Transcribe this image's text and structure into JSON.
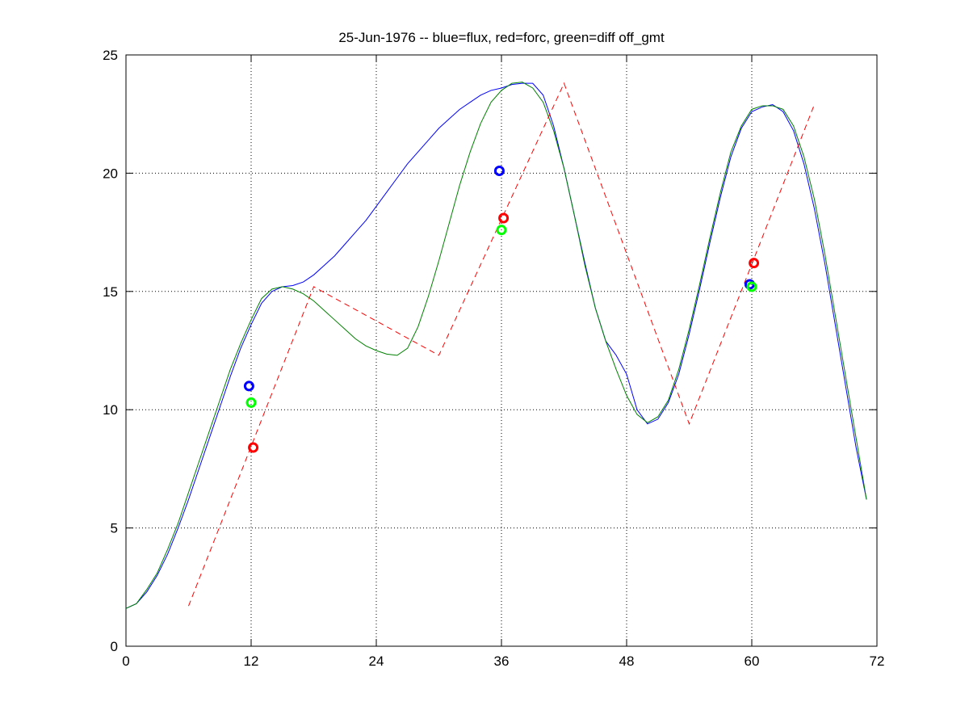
{
  "chart_data": {
    "type": "line",
    "title": "25-Jun-1976 -- blue=flux, red=forc, green=diff off_gmt",
    "xlim": [
      0,
      72
    ],
    "xticks": [
      0,
      12,
      24,
      36,
      48,
      60,
      72
    ],
    "ylim": [
      0,
      25
    ],
    "yticks": [
      0,
      5,
      10,
      15,
      20,
      25
    ],
    "grid": true,
    "series": [
      {
        "type": "line",
        "color": "#0000ff",
        "style": "solid",
        "x": [
          0,
          1,
          2,
          3,
          4,
          5,
          6,
          7,
          8,
          9,
          10,
          11,
          12,
          13,
          14,
          15,
          16,
          17,
          18,
          19,
          20,
          21,
          22,
          23,
          24,
          25,
          26,
          27,
          28,
          29,
          30,
          31,
          32,
          33,
          34,
          35,
          36,
          37,
          38,
          39,
          40,
          41,
          42,
          43,
          44,
          45,
          46,
          47,
          48,
          49,
          50,
          51,
          52,
          53,
          54,
          55,
          56,
          57,
          58,
          59,
          60,
          61,
          62,
          63,
          64,
          65,
          66,
          67,
          68,
          69,
          70,
          71
        ],
        "values": [
          1.6,
          1.8,
          2.3,
          3.0,
          3.9,
          5.0,
          6.2,
          7.5,
          8.8,
          10.1,
          11.4,
          12.6,
          13.6,
          14.5,
          15.0,
          15.2,
          15.25,
          15.4,
          15.7,
          16.1,
          16.5,
          17.0,
          17.5,
          18.0,
          18.6,
          19.2,
          19.8,
          20.4,
          20.9,
          21.4,
          21.9,
          22.3,
          22.7,
          23.0,
          23.3,
          23.5,
          23.6,
          23.75,
          23.8,
          23.8,
          23.3,
          22.0,
          20.2,
          18.2,
          16.2,
          14.3,
          12.9,
          12.3,
          11.5,
          10.0,
          9.4,
          9.6,
          10.3,
          11.5,
          13.2,
          15.1,
          17.1,
          19.0,
          20.7,
          21.9,
          22.6,
          22.8,
          22.9,
          22.6,
          21.8,
          20.4,
          18.5,
          16.2,
          13.6,
          11.0,
          8.4,
          6.2
        ]
      },
      {
        "type": "line",
        "color": "#008000",
        "style": "solid",
        "x": [
          0,
          1,
          2,
          3,
          4,
          5,
          6,
          7,
          8,
          9,
          10,
          11,
          12,
          13,
          14,
          15,
          16,
          17,
          18,
          19,
          20,
          21,
          22,
          23,
          24,
          25,
          26,
          27,
          28,
          29,
          30,
          31,
          32,
          33,
          34,
          35,
          36,
          37,
          38,
          39,
          40,
          41,
          42,
          43,
          44,
          45,
          46,
          47,
          48,
          49,
          50,
          51,
          52,
          53,
          54,
          55,
          56,
          57,
          58,
          59,
          60,
          61,
          62,
          63,
          64,
          65,
          66,
          67,
          68,
          69,
          70,
          71
        ],
        "values": [
          1.6,
          1.8,
          2.4,
          3.1,
          4.1,
          5.2,
          6.5,
          7.8,
          9.1,
          10.4,
          11.7,
          12.8,
          13.8,
          14.7,
          15.1,
          15.2,
          15.1,
          14.9,
          14.6,
          14.2,
          13.8,
          13.4,
          13.0,
          12.7,
          12.5,
          12.35,
          12.3,
          12.6,
          13.5,
          14.8,
          16.3,
          17.9,
          19.5,
          20.9,
          22.1,
          23.0,
          23.5,
          23.8,
          23.85,
          23.6,
          23.0,
          21.8,
          20.2,
          18.2,
          16.1,
          14.3,
          12.9,
          11.7,
          10.6,
          9.8,
          9.45,
          9.7,
          10.4,
          11.7,
          13.4,
          15.3,
          17.3,
          19.2,
          20.9,
          22.0,
          22.7,
          22.85,
          22.85,
          22.7,
          22.0,
          20.7,
          18.9,
          16.6,
          14.0,
          11.4,
          8.8,
          6.2
        ]
      },
      {
        "type": "line",
        "color": "#ff0000",
        "style": "dashed",
        "x": [
          6,
          18,
          30,
          42,
          54,
          66
        ],
        "values": [
          1.7,
          15.2,
          12.3,
          23.8,
          9.4,
          22.9
        ]
      },
      {
        "type": "scatter",
        "color": "#0000ff",
        "x": [
          11.8,
          35.8,
          59.8
        ],
        "values": [
          11.0,
          20.1,
          15.3
        ]
      },
      {
        "type": "scatter",
        "color": "#ff0000",
        "x": [
          12.2,
          36.2,
          60.2
        ],
        "values": [
          8.4,
          18.1,
          16.2
        ]
      },
      {
        "type": "scatter",
        "color": "#00ff00",
        "x": [
          12.0,
          36.0,
          60.0
        ],
        "values": [
          10.3,
          17.6,
          15.2
        ]
      }
    ]
  }
}
